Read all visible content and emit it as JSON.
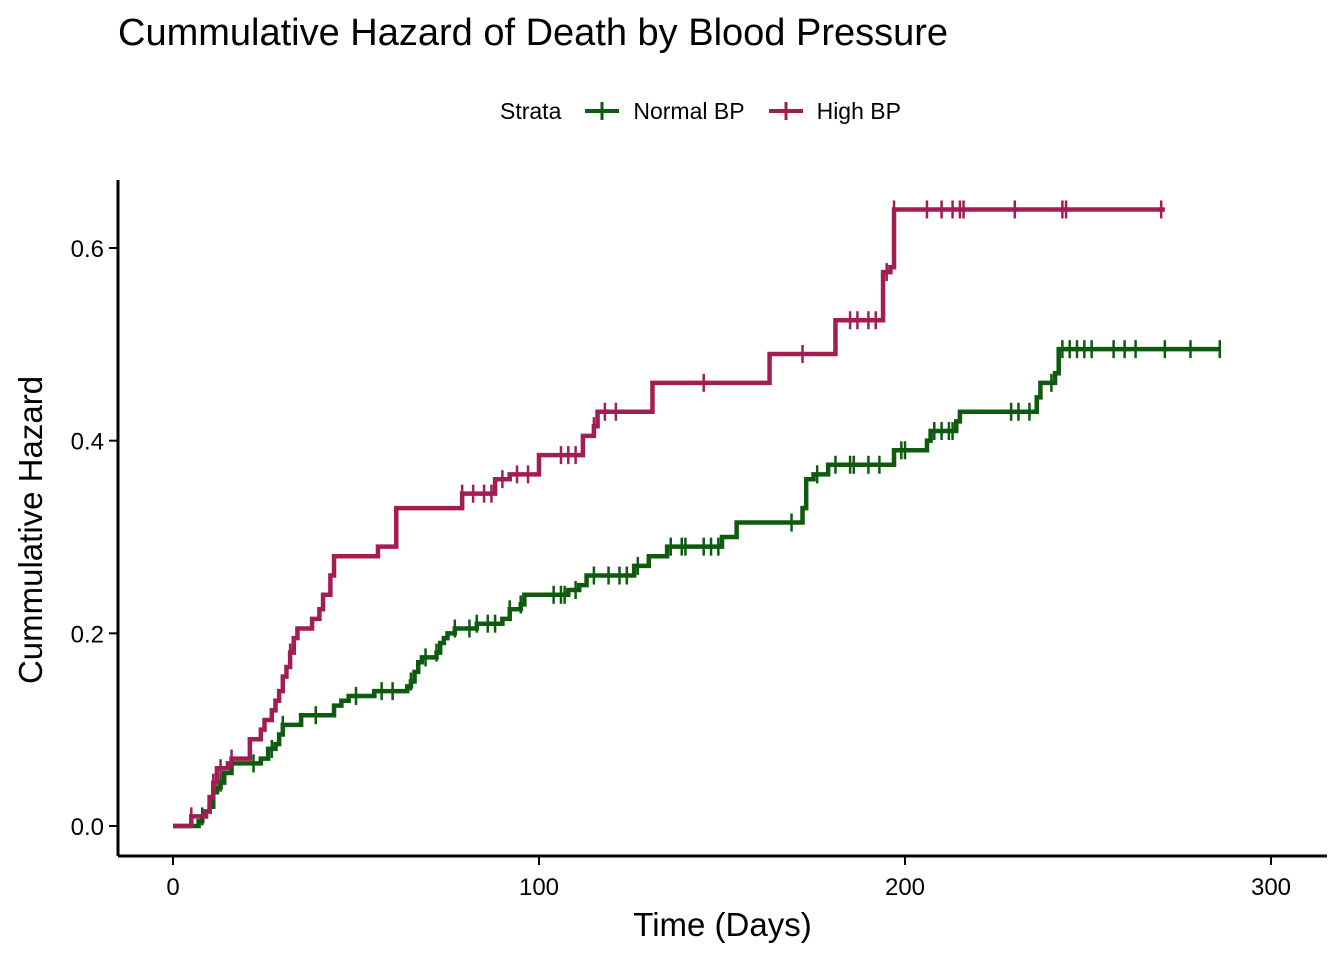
{
  "chart_data": {
    "type": "line",
    "subtype": "step",
    "title": "Cummulative Hazard of Death by Blood Pressure",
    "xlabel": "Time (Days)",
    "ylabel": "Cummulative Hazard",
    "xlim": [
      -15,
      315
    ],
    "ylim": [
      -0.03,
      0.67
    ],
    "xticks": [
      0,
      100,
      200,
      300
    ],
    "xtick_labels": [
      "0",
      "100",
      "200",
      "300"
    ],
    "yticks": [
      0.0,
      0.2,
      0.4,
      0.6
    ],
    "ytick_labels": [
      "0.0",
      "0.2",
      "0.4",
      "0.6"
    ],
    "grid": false,
    "legend": {
      "position": "top",
      "title": "Strata",
      "entries": [
        "Normal BP",
        "High BP"
      ]
    },
    "series": [
      {
        "name": "Normal BP",
        "color": "#0e5a0e",
        "steps": [
          [
            0,
            0.0
          ],
          [
            6,
            0.0
          ],
          [
            7,
            0.005
          ],
          [
            8,
            0.01
          ],
          [
            9,
            0.015
          ],
          [
            10,
            0.02
          ],
          [
            11,
            0.035
          ],
          [
            12,
            0.04
          ],
          [
            13,
            0.045
          ],
          [
            14,
            0.055
          ],
          [
            16,
            0.065
          ],
          [
            22,
            0.065
          ],
          [
            24,
            0.07
          ],
          [
            26,
            0.08
          ],
          [
            28,
            0.085
          ],
          [
            29,
            0.095
          ],
          [
            30,
            0.105
          ],
          [
            35,
            0.115
          ],
          [
            43,
            0.115
          ],
          [
            44,
            0.125
          ],
          [
            46,
            0.13
          ],
          [
            48,
            0.135
          ],
          [
            55,
            0.14
          ],
          [
            63,
            0.14
          ],
          [
            64,
            0.145
          ],
          [
            65,
            0.15
          ],
          [
            66,
            0.16
          ],
          [
            67,
            0.17
          ],
          [
            68,
            0.175
          ],
          [
            72,
            0.18
          ],
          [
            73,
            0.19
          ],
          [
            74,
            0.195
          ],
          [
            75,
            0.2
          ],
          [
            77,
            0.205
          ],
          [
            83,
            0.21
          ],
          [
            90,
            0.215
          ],
          [
            92,
            0.225
          ],
          [
            95,
            0.23
          ],
          [
            96,
            0.24
          ],
          [
            105,
            0.24
          ],
          [
            108,
            0.245
          ],
          [
            111,
            0.25
          ],
          [
            113,
            0.26
          ],
          [
            125,
            0.26
          ],
          [
            126,
            0.27
          ],
          [
            130,
            0.28
          ],
          [
            135,
            0.29
          ],
          [
            148,
            0.29
          ],
          [
            150,
            0.3
          ],
          [
            154,
            0.315
          ],
          [
            171,
            0.315
          ],
          [
            172,
            0.33
          ],
          [
            173,
            0.36
          ],
          [
            175,
            0.365
          ],
          [
            179,
            0.375
          ],
          [
            196,
            0.375
          ],
          [
            197,
            0.39
          ],
          [
            205,
            0.39
          ],
          [
            206,
            0.4
          ],
          [
            207,
            0.41
          ],
          [
            213,
            0.41
          ],
          [
            214,
            0.42
          ],
          [
            215,
            0.43
          ],
          [
            235,
            0.43
          ],
          [
            236,
            0.445
          ],
          [
            237,
            0.46
          ],
          [
            241,
            0.47
          ],
          [
            242,
            0.495
          ],
          [
            286,
            0.495
          ]
        ],
        "censor_times": [
          8,
          11,
          13,
          22,
          27,
          30,
          39,
          50,
          57,
          60,
          65,
          69,
          72,
          77,
          81,
          83,
          86,
          88,
          92,
          95,
          104,
          106,
          107,
          110,
          115,
          119,
          122,
          124,
          127,
          136,
          139,
          140,
          145,
          147,
          149,
          169,
          176,
          181,
          185,
          186,
          190,
          193,
          199,
          200,
          208,
          210,
          212,
          213,
          229,
          231,
          234,
          240,
          243,
          245,
          247,
          249,
          251,
          257,
          260,
          263,
          271,
          278,
          286
        ]
      },
      {
        "name": "High BP",
        "color": "#a11d52",
        "steps": [
          [
            0,
            0.0
          ],
          [
            4,
            0.0
          ],
          [
            5,
            0.01
          ],
          [
            9,
            0.015
          ],
          [
            10,
            0.03
          ],
          [
            11,
            0.045
          ],
          [
            12,
            0.06
          ],
          [
            15,
            0.065
          ],
          [
            16,
            0.07
          ],
          [
            20,
            0.07
          ],
          [
            21,
            0.09
          ],
          [
            24,
            0.1
          ],
          [
            25,
            0.11
          ],
          [
            27,
            0.12
          ],
          [
            28,
            0.13
          ],
          [
            29,
            0.14
          ],
          [
            30,
            0.155
          ],
          [
            31,
            0.165
          ],
          [
            32,
            0.18
          ],
          [
            33,
            0.195
          ],
          [
            34,
            0.205
          ],
          [
            37,
            0.205
          ],
          [
            38,
            0.215
          ],
          [
            40,
            0.225
          ],
          [
            41,
            0.24
          ],
          [
            43,
            0.26
          ],
          [
            44,
            0.28
          ],
          [
            55,
            0.28
          ],
          [
            56,
            0.29
          ],
          [
            60,
            0.29
          ],
          [
            61,
            0.33
          ],
          [
            78,
            0.33
          ],
          [
            79,
            0.345
          ],
          [
            87,
            0.345
          ],
          [
            88,
            0.36
          ],
          [
            92,
            0.365
          ],
          [
            99,
            0.365
          ],
          [
            100,
            0.385
          ],
          [
            111,
            0.385
          ],
          [
            112,
            0.405
          ],
          [
            115,
            0.415
          ],
          [
            116,
            0.43
          ],
          [
            130,
            0.43
          ],
          [
            131,
            0.46
          ],
          [
            162,
            0.46
          ],
          [
            163,
            0.49
          ],
          [
            180,
            0.49
          ],
          [
            181,
            0.525
          ],
          [
            193,
            0.525
          ],
          [
            194,
            0.575
          ],
          [
            196,
            0.58
          ],
          [
            197,
            0.64
          ],
          [
            271,
            0.64
          ]
        ],
        "censor_times": [
          5,
          11,
          13,
          16,
          32,
          79,
          82,
          85,
          87,
          90,
          94,
          97,
          106,
          108,
          110,
          115,
          118,
          121,
          145,
          172,
          185,
          187,
          190,
          192,
          195,
          197,
          206,
          210,
          213,
          215,
          216,
          230,
          243,
          244,
          270
        ]
      }
    ]
  }
}
